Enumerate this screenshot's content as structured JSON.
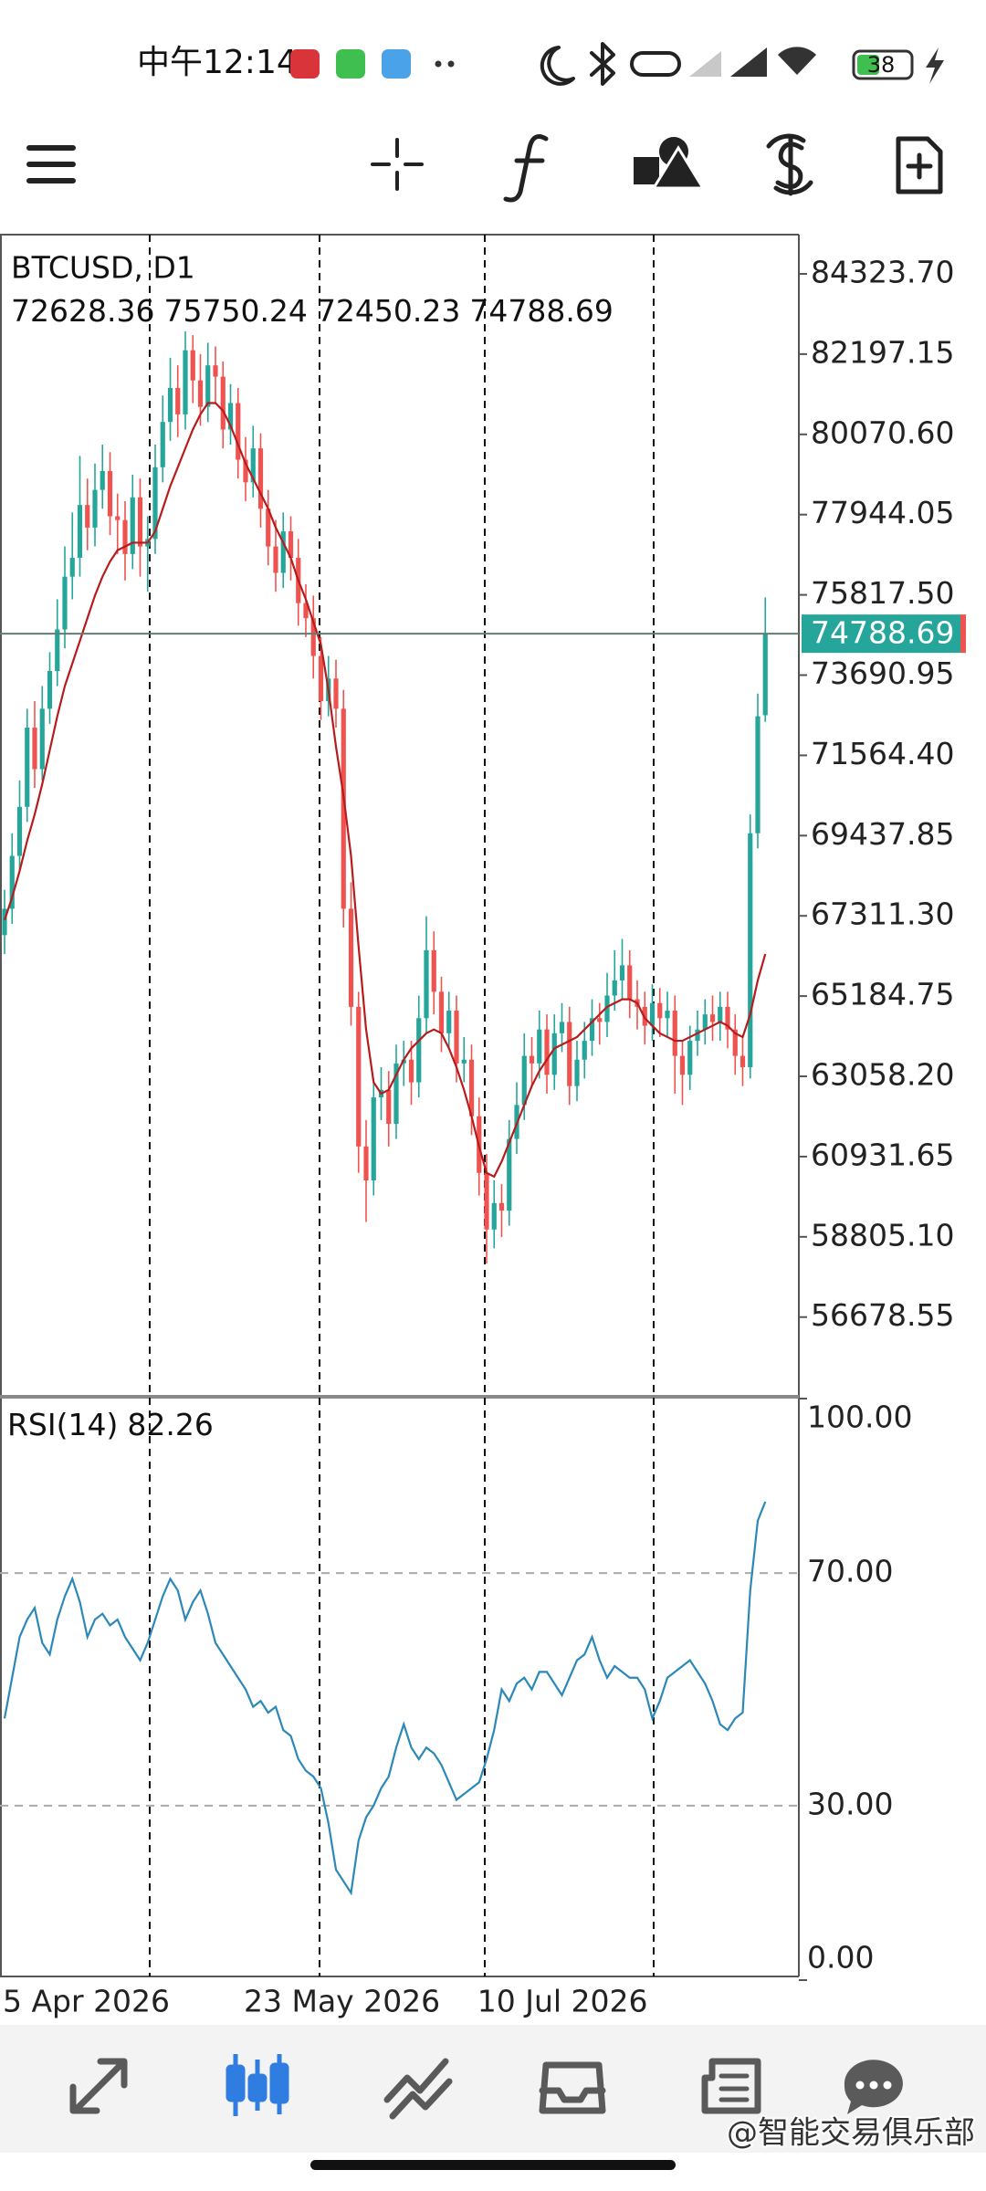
{
  "status_bar": {
    "time": "中午12:14",
    "battery": 38
  },
  "watermark": "@智能交易俱乐部",
  "chart_data": [
    {
      "type": "candlestick",
      "title": "BTCUSD, D1",
      "categories": [
        "5 Apr 2026",
        null,
        null,
        null,
        null,
        null,
        null,
        null,
        null,
        null,
        null,
        null,
        null,
        null,
        null,
        null,
        null,
        null,
        null,
        null,
        null,
        null,
        null,
        null,
        null,
        null,
        null,
        null,
        null,
        null,
        null,
        null,
        "23 May 2026",
        null,
        null,
        null,
        null,
        null,
        null,
        null,
        null,
        null,
        null,
        null,
        null,
        null,
        null,
        null,
        null,
        null,
        null,
        null,
        null,
        null,
        null,
        null,
        null,
        null,
        null,
        null,
        null,
        null,
        null,
        "10 Jul 2026",
        null,
        null,
        null,
        null,
        null,
        null,
        null,
        null,
        null,
        null,
        null,
        null,
        null,
        null,
        null,
        null,
        null,
        null,
        null,
        null,
        null,
        null,
        null,
        null,
        null,
        null,
        null,
        null,
        null,
        null,
        null,
        null,
        null,
        null,
        null,
        null,
        null,
        null
      ],
      "open": [
        66800,
        67500,
        68900,
        70200,
        72300,
        71200,
        72800,
        73800,
        74900,
        76300,
        76800,
        78200,
        77600,
        78600,
        79100,
        77900,
        77800,
        76900,
        78400,
        77100,
        77300,
        79200,
        80400,
        81300,
        80600,
        82300,
        81500,
        80800,
        81900,
        81600,
        80200,
        80900,
        79400,
        78800,
        79700,
        78100,
        77100,
        76400,
        77500,
        76800,
        75600,
        75200,
        74200,
        73000,
        73600,
        72800,
        67500,
        64900,
        61200,
        60300,
        62500,
        62700,
        61800,
        63400,
        63500,
        62900,
        64600,
        66400,
        65300,
        64200,
        64800,
        63400,
        63500,
        62000,
        60500,
        59000,
        59700,
        59500,
        61400,
        62300,
        63600,
        63400,
        64300,
        63100,
        64200,
        64500,
        62800,
        63500,
        64000,
        64600,
        64500,
        65200,
        65600,
        66000,
        65100,
        64900,
        64400,
        65000,
        64600,
        64800,
        63600,
        63100,
        64000,
        64300,
        64700,
        64500,
        64900,
        64300,
        63600,
        63300,
        69500,
        72628.36
      ],
      "high": [
        68000,
        69500,
        70900,
        72800,
        73000,
        73400,
        74300,
        75700,
        77100,
        78000,
        79500,
        78900,
        79300,
        79800,
        79600,
        78500,
        78300,
        79000,
        78900,
        77900,
        79800,
        81100,
        82100,
        81900,
        82800,
        82700,
        82200,
        82500,
        82400,
        82000,
        81400,
        81300,
        80000,
        80300,
        80100,
        78600,
        77800,
        78000,
        77900,
        77300,
        76100,
        75800,
        74700,
        74200,
        74100,
        73300,
        68200,
        65300,
        61900,
        63000,
        63300,
        63200,
        63900,
        64000,
        64000,
        65200,
        67300,
        66900,
        65700,
        65300,
        65200,
        64100,
        63900,
        62500,
        61000,
        60300,
        60200,
        61900,
        62900,
        64200,
        64100,
        64800,
        64700,
        64700,
        65000,
        64900,
        64000,
        64500,
        65100,
        65000,
        65800,
        66400,
        66700,
        66400,
        65600,
        65300,
        65500,
        65400,
        65300,
        65200,
        64000,
        64400,
        64800,
        65100,
        65200,
        65300,
        65300,
        64700,
        64100,
        70000,
        73200,
        75750.24
      ],
      "low": [
        66300,
        67100,
        68500,
        69800,
        70700,
        70900,
        72400,
        73400,
        74400,
        75700,
        76300,
        77000,
        77100,
        78100,
        77400,
        76900,
        76200,
        76500,
        76300,
        75900,
        76900,
        78800,
        79900,
        80000,
        80200,
        80900,
        80300,
        80400,
        80900,
        79700,
        79800,
        78900,
        78300,
        78400,
        77600,
        76600,
        75900,
        76000,
        76200,
        75000,
        74700,
        73600,
        72500,
        72600,
        72300,
        67000,
        64400,
        60500,
        59200,
        59900,
        61900,
        61200,
        61400,
        62800,
        62300,
        62500,
        64200,
        64700,
        63700,
        63800,
        62900,
        62900,
        61500,
        59900,
        58100,
        58500,
        58800,
        59100,
        61000,
        61900,
        62800,
        63000,
        62600,
        62700,
        63700,
        62300,
        62400,
        63000,
        63600,
        63900,
        64100,
        64800,
        65100,
        64600,
        64300,
        63900,
        64000,
        64100,
        64100,
        62600,
        62300,
        62700,
        63600,
        63900,
        64000,
        64000,
        63800,
        63100,
        62800,
        63000,
        69100,
        72450.23
      ],
      "close": [
        67500,
        68900,
        70200,
        72300,
        71200,
        72800,
        73800,
        74900,
        76300,
        76800,
        78200,
        77600,
        78600,
        79100,
        77900,
        77800,
        76900,
        78400,
        77100,
        77300,
        79200,
        80400,
        81300,
        80600,
        82300,
        81500,
        80800,
        81900,
        81600,
        80200,
        80900,
        79400,
        78800,
        79700,
        78100,
        77100,
        76400,
        77500,
        76800,
        75600,
        75200,
        74200,
        73000,
        73600,
        72800,
        67500,
        64900,
        61200,
        60300,
        62500,
        62700,
        61800,
        63400,
        63500,
        62900,
        64600,
        66400,
        65300,
        64200,
        64800,
        63400,
        63500,
        62000,
        60500,
        59000,
        59700,
        59500,
        61400,
        62300,
        63600,
        63400,
        64300,
        63100,
        64200,
        64500,
        62800,
        63500,
        64000,
        64600,
        64500,
        65200,
        65600,
        66000,
        65100,
        64900,
        64400,
        65000,
        64600,
        64800,
        63600,
        63100,
        64000,
        64300,
        64700,
        64500,
        64900,
        64300,
        63600,
        63300,
        69500,
        72600,
        74788.69
      ],
      "up_color": "#26a69a",
      "down_color": "#ef5350",
      "moving_average": {
        "color": "#b71c1c",
        "values": [
          67200,
          67800,
          68500,
          69300,
          70000,
          70800,
          71700,
          72600,
          73400,
          74000,
          74600,
          75200,
          75800,
          76300,
          76700,
          77000,
          77100,
          77200,
          77200,
          77200,
          77500,
          78100,
          78700,
          79200,
          79700,
          80200,
          80600,
          80900,
          80900,
          80700,
          80300,
          79800,
          79300,
          78900,
          78500,
          78100,
          77600,
          77200,
          76800,
          76200,
          75700,
          75100,
          74500,
          73300,
          71800,
          70500,
          68900,
          66500,
          64300,
          62900,
          62600,
          62700,
          63100,
          63500,
          63800,
          64000,
          64200,
          64300,
          64200,
          63800,
          63300,
          62700,
          62000,
          61200,
          60500,
          60400,
          60800,
          61300,
          61800,
          62300,
          62800,
          63200,
          63500,
          63800,
          63900,
          64000,
          64100,
          64300,
          64500,
          64700,
          64900,
          65000,
          65100,
          65100,
          65000,
          64600,
          64400,
          64200,
          64100,
          64000,
          64000,
          64100,
          64200,
          64300,
          64400,
          64500,
          64400,
          64200,
          64100,
          64700,
          65600,
          66300
        ]
      },
      "price_line_color": "#5f7d76",
      "price_label_color": "#26a69a",
      "ylim": [
        54567,
        85364
      ],
      "yticks": [
        {
          "value": 84323.7,
          "label": "84323.70"
        },
        82197.15,
        {
          "value": 80070.6,
          "label": "80070.60"
        },
        77944.05,
        {
          "value": 75817.5,
          "label": "75817.50"
        },
        73690.95,
        {
          "value": 71564.4,
          "label": "71564.40"
        },
        69437.85,
        {
          "value": 67311.3,
          "label": "67311.30"
        },
        65184.75,
        {
          "value": 63058.2,
          "label": "63058.20"
        },
        60931.65,
        {
          "value": 58805.1,
          "label": "58805.10"
        },
        56678.55
      ]
    },
    {
      "type": "line",
      "title": "RSI(14)",
      "color": "#2b88b8",
      "values": [
        45,
        52,
        59,
        62,
        64,
        58,
        56,
        62,
        66,
        69,
        65,
        59,
        62,
        63,
        61,
        62,
        59,
        57,
        55,
        58,
        62,
        66,
        69,
        67,
        62,
        65,
        67,
        63,
        58,
        56,
        54,
        52,
        50,
        47,
        48,
        46,
        47,
        43,
        42,
        38,
        36,
        35,
        33,
        27,
        19,
        17,
        15,
        24,
        28,
        30,
        33,
        35,
        40,
        44,
        40,
        38,
        40,
        39,
        37,
        34,
        31,
        32,
        33,
        34,
        38,
        43,
        50,
        48,
        51,
        52,
        50,
        53,
        53,
        51,
        49,
        52,
        55,
        56,
        59,
        55,
        52,
        54,
        53,
        52,
        52,
        50,
        45,
        48,
        52,
        53,
        54,
        55,
        53,
        51,
        48,
        44,
        43,
        45,
        46,
        67,
        79,
        82.26
      ],
      "ylim": [
        0,
        100
      ],
      "yticks": [
        {
          "value": 100,
          "label": "100.00"
        },
        {
          "value": 70,
          "label": "70.00"
        },
        {
          "value": 30,
          "label": "30.00"
        },
        {
          "value": 0,
          "label": "0.00"
        }
      ]
    }
  ]
}
